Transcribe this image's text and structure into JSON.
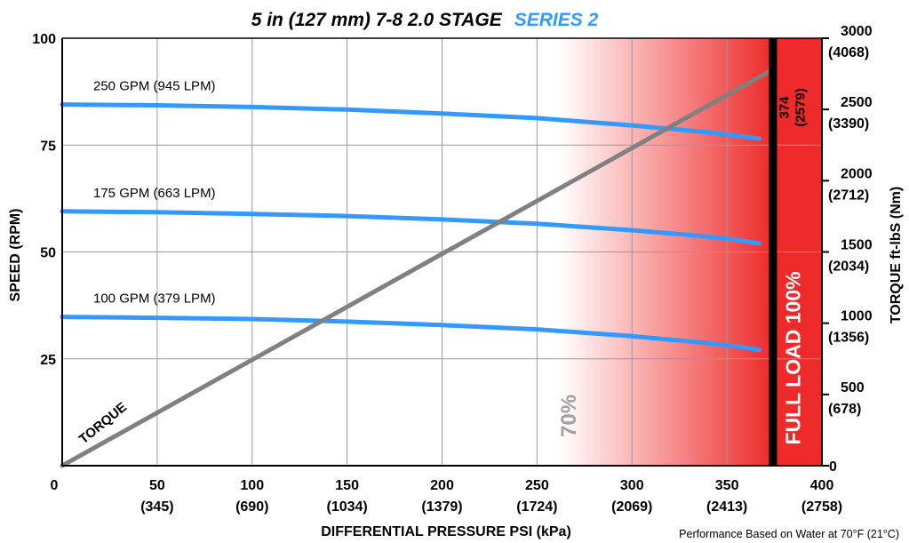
{
  "chart_data": {
    "type": "line",
    "title": {
      "main": "5 in (127 mm) 7-8 2.0 STAGE",
      "series_label": "SERIES 2"
    },
    "xlabel": "DIFFERENTIAL PRESSURE  PSI (kPa)",
    "ylabel": "SPEED (RPM)",
    "y2label": "TORQUE  ft-lbS (Nm)",
    "xlim": [
      0,
      400
    ],
    "ylim": [
      0,
      100
    ],
    "y2lim": [
      0,
      3000
    ],
    "x_ticks": [
      {
        "value": 0,
        "label": "0",
        "sub": ""
      },
      {
        "value": 50,
        "label": "50",
        "sub": "(345)"
      },
      {
        "value": 100,
        "label": "100",
        "sub": "(690)"
      },
      {
        "value": 150,
        "label": "150",
        "sub": "(1034)"
      },
      {
        "value": 200,
        "label": "200",
        "sub": "(1379)"
      },
      {
        "value": 250,
        "label": "250",
        "sub": "(1724)"
      },
      {
        "value": 300,
        "label": "300",
        "sub": "(2069)"
      },
      {
        "value": 350,
        "label": "350",
        "sub": "(2413)"
      },
      {
        "value": 400,
        "label": "400",
        "sub": "(2758)"
      }
    ],
    "y_ticks": [
      {
        "value": 25,
        "label": "25"
      },
      {
        "value": 50,
        "label": "50"
      },
      {
        "value": 75,
        "label": "75"
      },
      {
        "value": 100,
        "label": "100"
      }
    ],
    "y2_ticks": [
      {
        "value": 0,
        "label": "0",
        "sub": ""
      },
      {
        "value": 500,
        "label": "500",
        "sub": "(678)"
      },
      {
        "value": 1000,
        "label": "1000",
        "sub": "(1356)"
      },
      {
        "value": 1500,
        "label": "1500",
        "sub": "(2034)"
      },
      {
        "value": 2000,
        "label": "2000",
        "sub": "(2712)"
      },
      {
        "value": 2500,
        "label": "2500",
        "sub": "(3390)"
      },
      {
        "value": 3000,
        "label": "3000",
        "sub": "(4068)"
      }
    ],
    "grid": true,
    "series": [
      {
        "name": "250 GPM (945 LPM)",
        "axis": "speed",
        "x": [
          0,
          50,
          100,
          150,
          200,
          250,
          300,
          340,
          355,
          367
        ],
        "y": [
          84.5,
          84.3,
          83.9,
          83.3,
          82.4,
          81.3,
          79.6,
          78.0,
          77.2,
          76.5
        ]
      },
      {
        "name": "175 GPM (663 LPM)",
        "axis": "speed",
        "x": [
          0,
          50,
          100,
          150,
          200,
          250,
          300,
          340,
          355,
          367
        ],
        "y": [
          59.5,
          59.3,
          58.9,
          58.4,
          57.6,
          56.6,
          55.1,
          53.6,
          52.8,
          52.0
        ]
      },
      {
        "name": "100 GPM (379 LPM)",
        "axis": "speed",
        "x": [
          0,
          50,
          100,
          150,
          200,
          250,
          300,
          340,
          355,
          367
        ],
        "y": [
          34.8,
          34.6,
          34.3,
          33.7,
          32.9,
          31.9,
          30.3,
          28.7,
          27.9,
          27.1
        ]
      },
      {
        "name": "TORQUE",
        "axis": "torque",
        "x": [
          0,
          374
        ],
        "y": [
          0,
          2779
        ]
      }
    ],
    "annotations": {
      "seventy_label": "70%",
      "seventy_at_psi": 262,
      "full_load_label": "FULL LOAD 100%",
      "full_load_at_psi": 374,
      "max_value_label": "374",
      "max_value_sub": "(2579)",
      "footnote": "Performance Based on Water at 70°F (21°C)"
    },
    "colors": {
      "speed_curves": "#3399ff",
      "torque_line": "#808080",
      "full_load_fill": "#ee2a2a",
      "gradient_start": "#ffffff",
      "gradient_end": "#ee2a2a",
      "max_bar": "#000000",
      "series_label": "#3399ff",
      "seventy_label": "#a0a0a0"
    }
  }
}
